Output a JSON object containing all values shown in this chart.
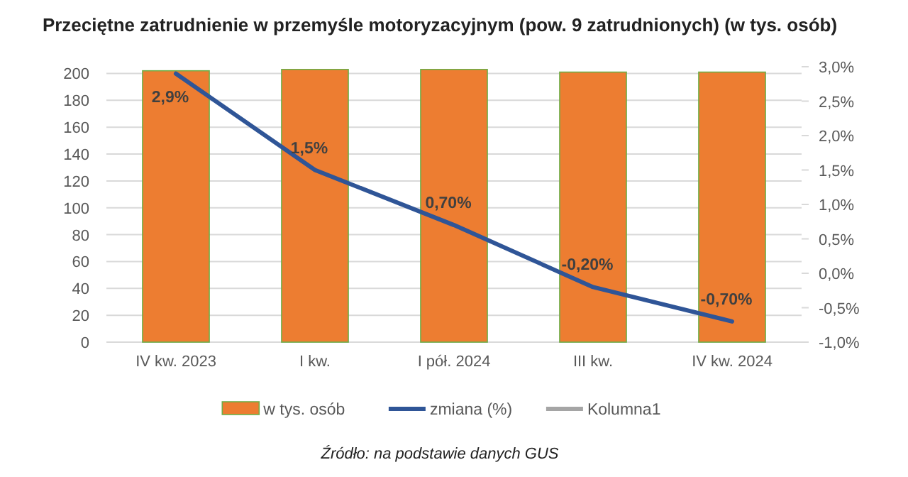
{
  "chart_data": {
    "type": "bar",
    "title": "Przeciętne zatrudnienie w przemyśle motoryzacyjnym (pow. 9 zatrudnionych) (w tys. osób)",
    "categories": [
      "IV kw. 2023",
      "I kw.",
      "I pół. 2024",
      "III kw.",
      "IV kw. 2024"
    ],
    "series": [
      {
        "name": "w tys. osób",
        "color": "#ed7d31",
        "values": [
          202,
          203,
          203,
          201,
          201
        ]
      },
      {
        "name": "zmiana (%)",
        "type": "line",
        "axis": "y2",
        "color": "#2f5597",
        "values": [
          2.9,
          1.5,
          0.7,
          -0.2,
          -0.7
        ],
        "value_labels": [
          "2,9%",
          "1,5%",
          "0,70%",
          "-0,20%",
          "-0,70%"
        ]
      },
      {
        "name": "Kolumna1",
        "type": "line",
        "color": "#a5a5a5",
        "values": [
          null,
          null,
          null,
          null,
          null
        ]
      }
    ],
    "ylim": [
      0,
      205
    ],
    "yticks": [
      0,
      20,
      40,
      60,
      80,
      100,
      120,
      140,
      160,
      180,
      200
    ],
    "y2lim": [
      -1,
      3
    ],
    "y2ticks": [
      {
        "value": -1,
        "label": "-1,0%"
      },
      {
        "value": -0.5,
        "label": "-0,5%"
      },
      {
        "value": 0,
        "label": "0,0%"
      },
      {
        "value": 0.5,
        "label": "0,5%"
      },
      {
        "value": 1,
        "label": "1,0%"
      },
      {
        "value": 1.5,
        "label": "1,5%"
      },
      {
        "value": 2,
        "label": "2,0%"
      },
      {
        "value": 2.5,
        "label": "2,5%"
      },
      {
        "value": 3,
        "label": "3,0%"
      }
    ],
    "grid": "y",
    "legend": "bottom",
    "annotations": [
      "Źródło: na podstawie danych GUS"
    ]
  }
}
